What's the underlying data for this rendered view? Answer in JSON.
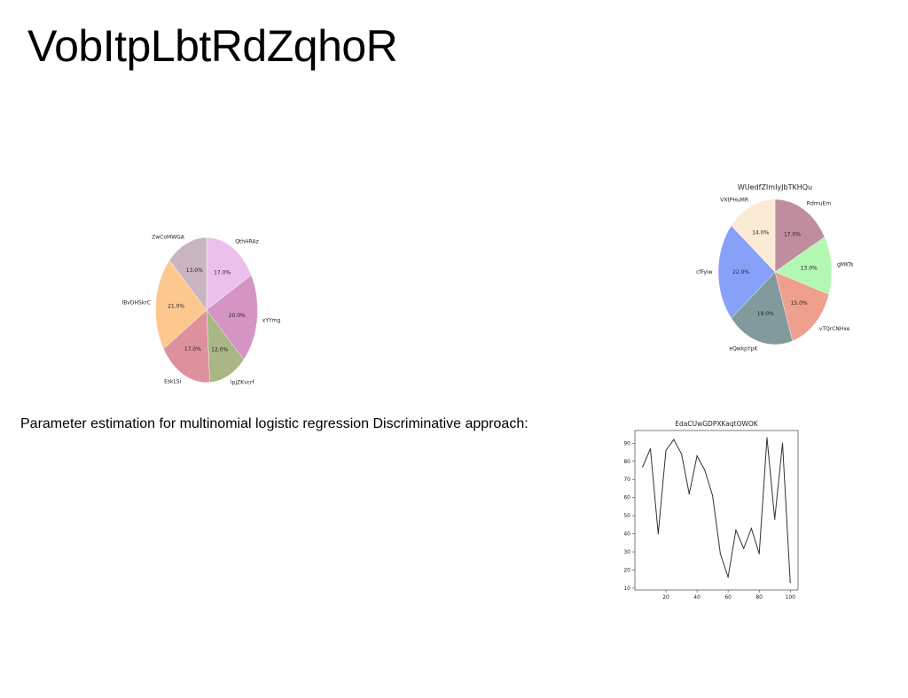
{
  "page": {
    "title": "VobItpLbtRdZqhoR",
    "caption": "Parameter estimation for multinomial logistic regression Discriminative approach:"
  },
  "chart_data": [
    {
      "type": "pie",
      "title": "",
      "labels": [
        "QthHRAz",
        "xYYmg",
        "lpjZKvcrf",
        "EskLSi",
        "lBvDHSkrC",
        "ZwCoMWGA"
      ],
      "values": [
        17.0,
        20.0,
        12.0,
        17.0,
        21.0,
        13.0
      ],
      "percent_labels": [
        "17.0%",
        "20.0%",
        "12.0%",
        "17.0%",
        "21.0%",
        "13.0%"
      ],
      "colors": [
        "#ecc0ec",
        "#d495c4",
        "#a9b785",
        "#de919d",
        "#fdc88d",
        "#c9b5bf"
      ],
      "start_angle_deg": 90,
      "direction": "clockwise"
    },
    {
      "type": "pie",
      "title": "WUedfZImIyJbTKHQu",
      "labels": [
        "RdmuEm",
        "gMKTs",
        "vTQrCNHxe",
        "eQwkpYpK",
        "cfFyiw",
        "VXtPHuMR"
      ],
      "values": [
        17.0,
        13.0,
        15.0,
        19.0,
        22.0,
        14.0
      ],
      "percent_labels": [
        "17.0%",
        "13.0%",
        "15.0%",
        "19.0%",
        "22.0%",
        "14.0%"
      ],
      "colors": [
        "#c08d9f",
        "#b2f8b2",
        "#ef9f8e",
        "#829a9b",
        "#87a1f8",
        "#fcebd4"
      ],
      "start_angle_deg": 90,
      "direction": "clockwise"
    },
    {
      "type": "line",
      "title": "EdaCUwGDPXKaqtOWOK",
      "xlabel": "",
      "ylabel": "",
      "x": [
        5,
        10,
        15,
        20,
        25,
        30,
        35,
        40,
        45,
        50,
        55,
        60,
        65,
        70,
        75,
        80,
        85,
        90,
        95,
        100
      ],
      "y": [
        77,
        87,
        40,
        86,
        92,
        84,
        62,
        83,
        75,
        61,
        29,
        16,
        42,
        32,
        43,
        29,
        93,
        48,
        90,
        13
      ],
      "xlim": [
        0,
        105
      ],
      "ylim": [
        9,
        97
      ],
      "xticks": [
        20,
        40,
        60,
        80,
        100
      ],
      "yticks": [
        10,
        20,
        30,
        40,
        50,
        60,
        70,
        80,
        90
      ],
      "line_color": "#333333",
      "grid": false
    }
  ]
}
